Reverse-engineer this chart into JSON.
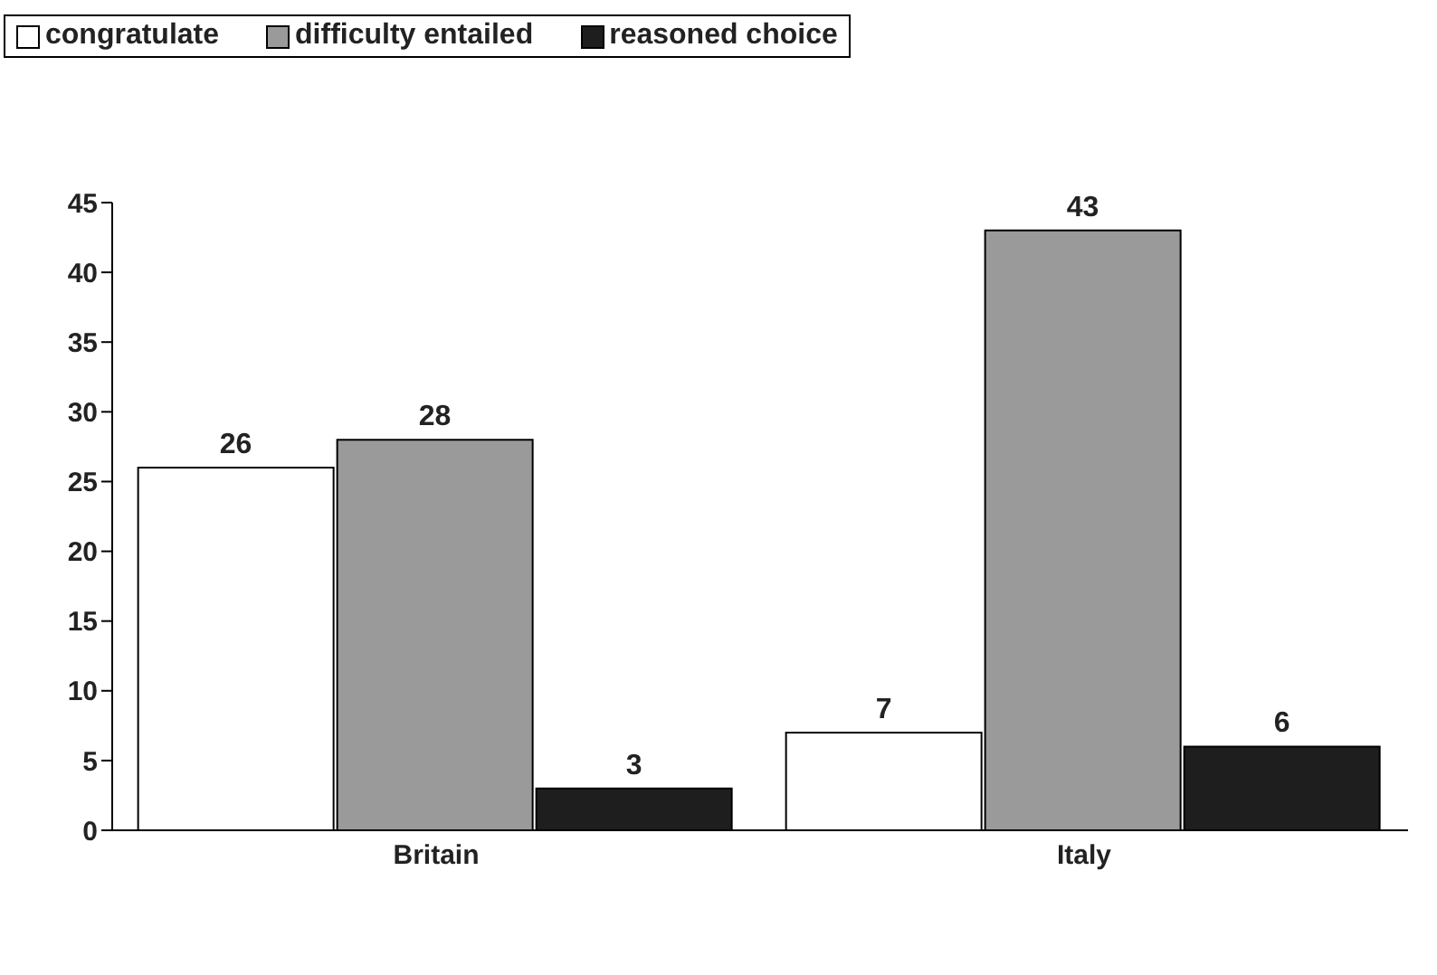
{
  "chart_data": {
    "type": "bar",
    "categories": [
      "Britain",
      "Italy"
    ],
    "series": [
      {
        "name": "congratulate",
        "color": "#ffffff",
        "values": [
          26,
          7
        ]
      },
      {
        "name": "difficulty entailed",
        "color": "#9a9a9a",
        "values": [
          28,
          43
        ]
      },
      {
        "name": "reasoned choice",
        "color": "#1e1e1e",
        "values": [
          3,
          6
        ]
      }
    ],
    "ylim": [
      0,
      45
    ],
    "yticks": [
      0,
      5,
      10,
      15,
      20,
      25,
      30,
      35,
      40,
      45
    ],
    "grid": false,
    "legend": "top left",
    "data_labels": true
  }
}
